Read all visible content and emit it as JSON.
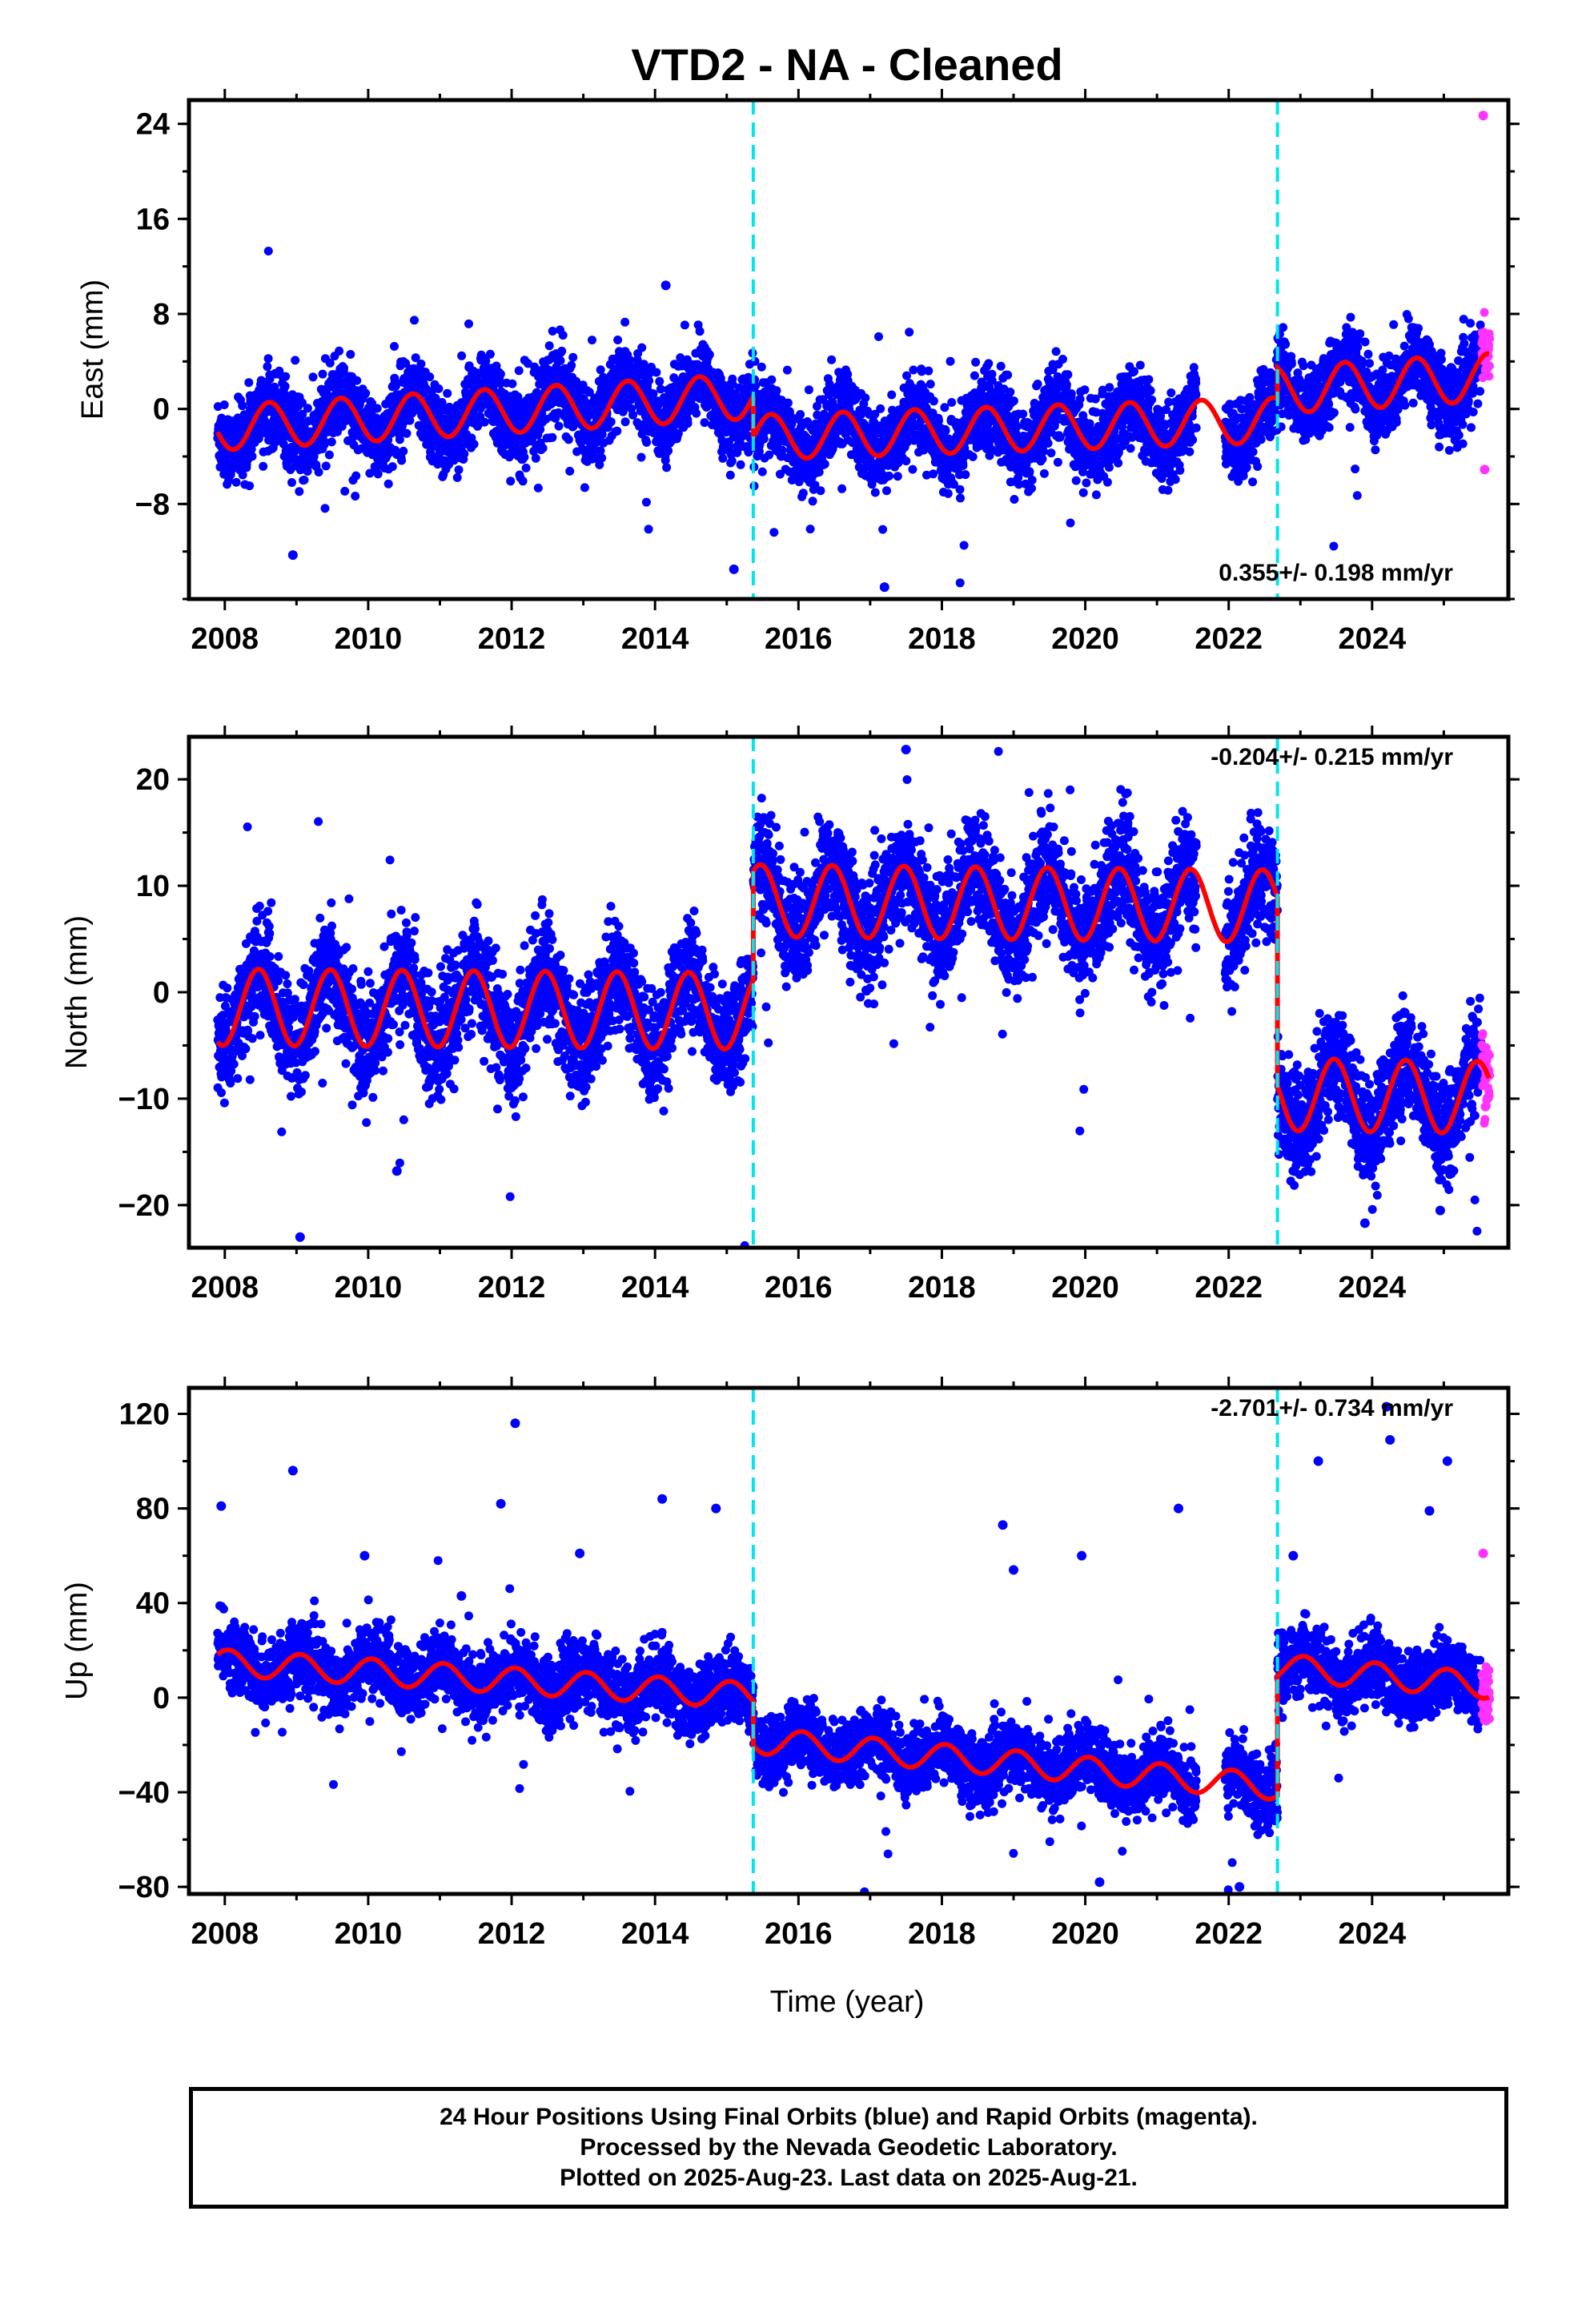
{
  "title": "VTD2  - NA - Cleaned",
  "xlabel": "Time (year)",
  "colors": {
    "final": "#0000ff",
    "rapid": "#ff33ff",
    "model": "#ff0000",
    "steps": "#00e5ee",
    "frame": "#000000"
  },
  "footer": {
    "line1": "24 Hour Positions Using Final Orbits (blue) and Rapid Orbits (magenta).",
    "line2": "Processed by the Nevada Geodetic Laboratory.",
    "line3": "Plotted on 2025-Aug-23. Last data on 2025-Aug-21."
  },
  "chart_data": [
    {
      "type": "scatter",
      "ylabel": "East (mm)",
      "rate_label": "0.355+/- 0.198 mm/yr",
      "xlim": [
        2007.5,
        2025.9
      ],
      "ylim": [
        -16,
        26
      ],
      "xticks": [
        2008,
        2010,
        2012,
        2014,
        2016,
        2018,
        2020,
        2022,
        2024
      ],
      "yticks": [
        -8,
        0,
        8,
        16,
        24
      ],
      "step_epochs": [
        2015.37,
        2022.68
      ],
      "model_segments": [
        {
          "x0": 2007.9,
          "x1": 2015.37,
          "offset": -1.6,
          "slope": 0.36,
          "amp": 1.9,
          "phase_peak": 0.62
        },
        {
          "x0": 2015.37,
          "x1": 2022.68,
          "offset": -2.4,
          "slope": 0.2,
          "amp": 1.9,
          "phase_peak": 0.62
        },
        {
          "x0": 2022.68,
          "x1": 2025.63,
          "offset": 1.6,
          "slope": 0.36,
          "amp": 2.0,
          "phase_peak": 0.62
        }
      ],
      "data_summary": "approx. daily positions 2007.9-2025.6, scatter about model ~1.6 mm",
      "notable_points": [
        [
          2014.15,
          10.4
        ],
        [
          2008.95,
          -12.3
        ],
        [
          2015.1,
          -13.5
        ],
        [
          2017.2,
          -15.0
        ],
        [
          2025.55,
          24.7
        ],
        [
          2025.57,
          -5.1
        ]
      ]
    },
    {
      "type": "scatter",
      "ylabel": "North (mm)",
      "rate_label": "-0.204+/- 0.215 mm/yr",
      "xlim": [
        2007.5,
        2025.9
      ],
      "ylim": [
        -24,
        24
      ],
      "xticks": [
        2008,
        2010,
        2012,
        2014,
        2016,
        2018,
        2020,
        2022,
        2024
      ],
      "yticks": [
        -20,
        -10,
        0,
        10,
        20
      ],
      "step_epochs": [
        2015.37,
        2022.68
      ],
      "model_segments": [
        {
          "x0": 2007.9,
          "x1": 2015.37,
          "offset": -1.4,
          "slope": -0.05,
          "amp": 3.6,
          "phase_peak": 0.47
        },
        {
          "x0": 2015.37,
          "x1": 2022.68,
          "offset": 8.6,
          "slope": -0.07,
          "amp": 3.4,
          "phase_peak": 0.47
        },
        {
          "x0": 2022.68,
          "x1": 2025.63,
          "offset": -9.6,
          "slope": -0.1,
          "amp": 3.4,
          "phase_peak": 0.47
        }
      ],
      "data_summary": "approx. daily positions 2007.9-2025.6, scatter about model ~2.5 mm",
      "notable_points": [
        [
          2009.05,
          -23.0
        ],
        [
          2010.4,
          -16.8
        ],
        [
          2017.5,
          22.8
        ],
        [
          2023.9,
          -21.7
        ],
        [
          2024.95,
          -20.5
        ]
      ]
    },
    {
      "type": "scatter",
      "ylabel": "Up (mm)",
      "rate_label": "-2.701+/- 0.734 mm/yr",
      "xlim": [
        2007.5,
        2025.9
      ],
      "ylim": [
        -83,
        131
      ],
      "xticks": [
        2008,
        2010,
        2012,
        2014,
        2016,
        2018,
        2020,
        2022,
        2024
      ],
      "yticks": [
        -80,
        -40,
        0,
        40,
        80,
        120
      ],
      "step_epochs": [
        2015.37,
        2022.68
      ],
      "model_segments": [
        {
          "x0": 2007.9,
          "x1": 2015.37,
          "offset": 15,
          "slope": -1.9,
          "amp": 5.5,
          "phase_peak": 0.05
        },
        {
          "x0": 2015.37,
          "x1": 2022.68,
          "offset": -18,
          "slope": -2.7,
          "amp": 5.5,
          "phase_peak": 0.05
        },
        {
          "x0": 2022.68,
          "x1": 2025.63,
          "offset": 13,
          "slope": -2.7,
          "amp": 5.5,
          "phase_peak": 0.05
        }
      ],
      "data_summary": "approx. daily positions 2007.9-2025.6, scatter about model ~7 mm",
      "notable_points": [
        [
          2007.95,
          81
        ],
        [
          2008.95,
          96
        ],
        [
          2009.95,
          60
        ],
        [
          2011.3,
          43
        ],
        [
          2011.85,
          82
        ],
        [
          2012.05,
          116
        ],
        [
          2012.95,
          61
        ],
        [
          2014.1,
          84
        ],
        [
          2014.85,
          80
        ],
        [
          2018.85,
          73
        ],
        [
          2019.0,
          54
        ],
        [
          2019.95,
          60
        ],
        [
          2021.3,
          80
        ],
        [
          2022.9,
          60
        ],
        [
          2023.25,
          100
        ],
        [
          2024.2,
          123
        ],
        [
          2024.25,
          109
        ],
        [
          2024.8,
          79
        ],
        [
          2025.05,
          100
        ],
        [
          2025.55,
          61
        ],
        [
          2020.2,
          -78
        ],
        [
          2022.15,
          -80
        ]
      ]
    }
  ]
}
